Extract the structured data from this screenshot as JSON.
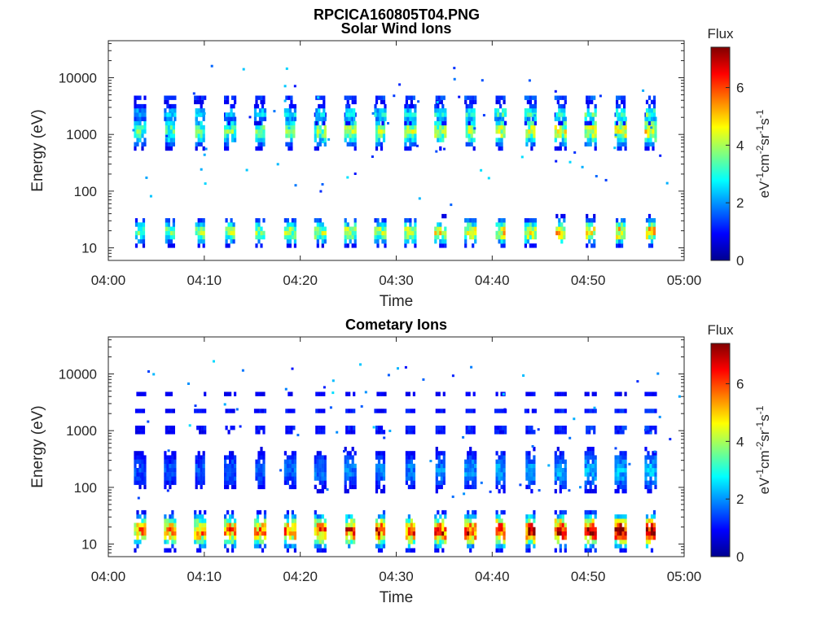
{
  "figure": {
    "title": "RPCICA160805T04.PNG"
  },
  "chart_data": [
    {
      "type": "heatmap",
      "title": "Solar Wind Ions",
      "xlabel": "Time",
      "ylabel": "Energy (eV)",
      "x_ticks": [
        "04:00",
        "04:10",
        "04:20",
        "04:30",
        "04:40",
        "04:50",
        "05:00"
      ],
      "xlim": [
        "04:00",
        "05:00"
      ],
      "y_scale": "log",
      "y_ticks": [
        10,
        100,
        1000,
        10000
      ],
      "y_tick_labels": [
        "10",
        "100",
        "1000",
        "10000"
      ],
      "ylim": [
        6,
        45000
      ],
      "colorbar": {
        "title": "Flux",
        "units": "eV-1cm-2sr-1s-1",
        "range": [
          0,
          7.4
        ],
        "ticks": [
          0,
          2,
          4,
          6
        ],
        "colormap": "jet"
      },
      "scan_period_min": 3.13,
      "first_scan_min": 3.3,
      "bands": [
        {
          "center_eV": 1150,
          "spread": 0.38,
          "peak": [
            3.2,
            4.4
          ]
        },
        {
          "center_eV": 2300,
          "spread": 0.22,
          "peak": [
            2.2,
            3.4
          ]
        },
        {
          "center_eV": 4200,
          "spread": 0.1,
          "peak": [
            1.2,
            1.8
          ]
        },
        {
          "center_eV": 19,
          "spread": 0.3,
          "peak": [
            3.3,
            5.0
          ]
        }
      ],
      "scatter_range_eV": [
        60,
        18000
      ]
    },
    {
      "type": "heatmap",
      "title": "Cometary Ions",
      "xlabel": "Time",
      "ylabel": "Energy (eV)",
      "x_ticks": [
        "04:00",
        "04:10",
        "04:20",
        "04:30",
        "04:40",
        "04:50",
        "05:00"
      ],
      "xlim": [
        "04:00",
        "05:00"
      ],
      "y_scale": "log",
      "y_ticks": [
        10,
        100,
        1000,
        10000
      ],
      "y_tick_labels": [
        "10",
        "100",
        "1000",
        "10000"
      ],
      "ylim": [
        6,
        45000
      ],
      "colorbar": {
        "title": "Flux",
        "units": "eV-1cm-2sr-1s-1",
        "range": [
          0,
          7.4
        ],
        "ticks": [
          0,
          2,
          4,
          6
        ],
        "colormap": "jet"
      },
      "scan_period_min": 3.13,
      "first_scan_min": 3.3,
      "bands": [
        {
          "center_eV": 17,
          "spread": 0.38,
          "peak": [
            5.0,
            7.0
          ]
        },
        {
          "center_eV": 1050,
          "spread": 0.12,
          "peak": [
            1.1,
            1.5
          ]
        },
        {
          "center_eV": 2200,
          "spread": 0.1,
          "peak": [
            0.9,
            1.2
          ]
        },
        {
          "center_eV": 4300,
          "spread": 0.06,
          "peak": [
            0.8,
            1.1
          ]
        },
        {
          "center_eV": 200,
          "spread": 0.55,
          "peak": [
            1.4,
            2.3
          ]
        }
      ],
      "scatter_range_eV": [
        60,
        18000
      ]
    }
  ]
}
